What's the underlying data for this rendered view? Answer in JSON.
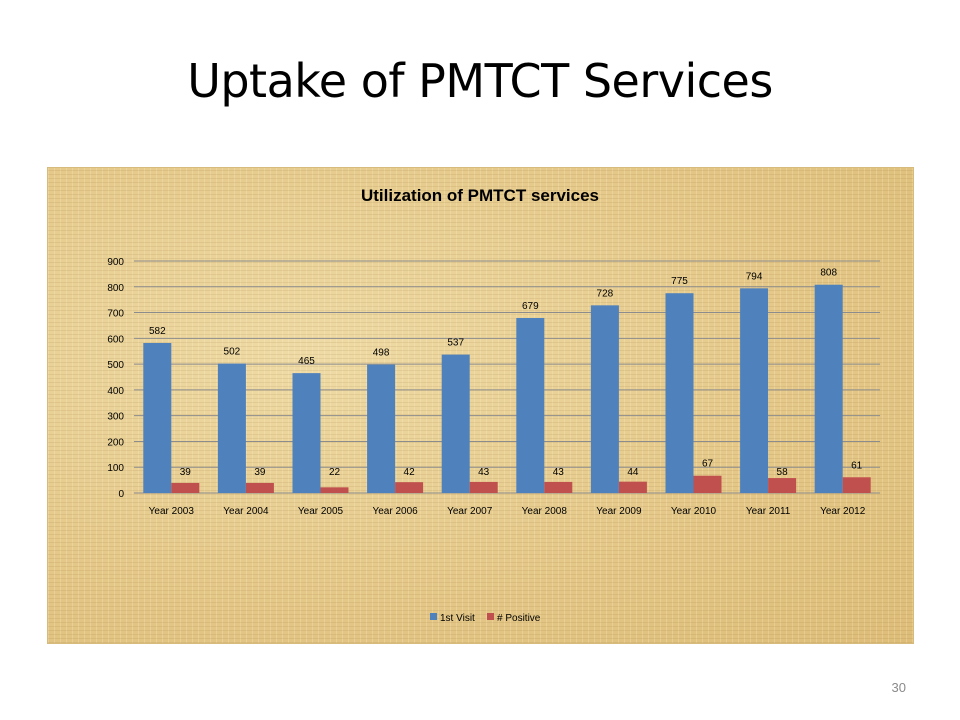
{
  "slide": {
    "title": "Uptake of PMTCT Services",
    "page_number": "30"
  },
  "colors": {
    "series_1": "#4f81bd",
    "series_2": "#c0504d",
    "gridline": "#8c8c8c",
    "text": "#000000"
  },
  "chart_data": {
    "type": "bar",
    "title": "Utilization of PMTCT services",
    "xlabel": "",
    "ylabel": "",
    "categories": [
      "Year 2003",
      "Year 2004",
      "Year 2005",
      "Year 2006",
      "Year 2007",
      "Year 2008",
      "Year 2009",
      "Year 2010",
      "Year 2011",
      "Year 2012"
    ],
    "series": [
      {
        "name": "1st Visit",
        "values": [
          582,
          502,
          465,
          498,
          537,
          679,
          728,
          775,
          794,
          808
        ]
      },
      {
        "name": "# Positive",
        "values": [
          39,
          39,
          22,
          42,
          43,
          43,
          44,
          67,
          58,
          61
        ]
      }
    ],
    "ylim": [
      0,
      900
    ],
    "yticks": [
      0,
      100,
      200,
      300,
      400,
      500,
      600,
      700,
      800,
      900
    ],
    "grid": true,
    "legend_position": "bottom",
    "data_labels": true
  }
}
